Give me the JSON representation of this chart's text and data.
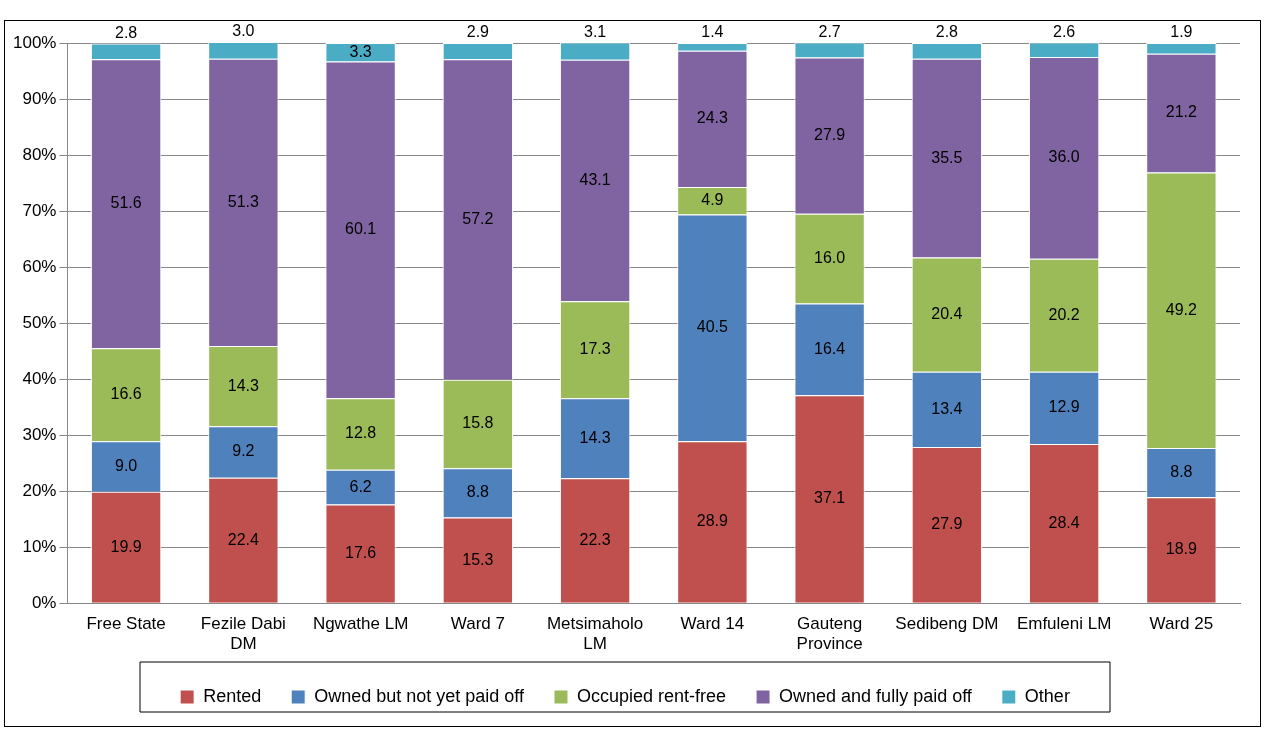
{
  "chart_data": {
    "type": "bar",
    "stacked": true,
    "categories": [
      "Free State",
      "Fezile Dabi DM",
      "Ngwathe LM",
      "Ward 7",
      "Metsimaholo LM",
      "Ward 14",
      "Gauteng Province",
      "Sedibeng DM",
      "Emfuleni LM",
      "Ward 25"
    ],
    "series": [
      {
        "name": "Rented",
        "color": "#c0504d",
        "values": [
          19.9,
          22.4,
          17.6,
          15.3,
          22.3,
          28.9,
          37.1,
          27.9,
          28.4,
          18.9
        ]
      },
      {
        "name": "Owned but not yet paid off",
        "color": "#4f81bd",
        "values": [
          9.0,
          9.2,
          6.2,
          8.8,
          14.3,
          40.5,
          16.4,
          13.4,
          12.9,
          8.8
        ]
      },
      {
        "name": "Occupied rent-free",
        "color": "#9bbb59",
        "values": [
          16.6,
          14.3,
          12.8,
          15.8,
          17.3,
          4.9,
          16.0,
          20.4,
          20.2,
          49.2
        ]
      },
      {
        "name": "Owned and fully paid off",
        "color": "#8064a2",
        "values": [
          51.6,
          51.3,
          60.1,
          57.2,
          43.1,
          24.3,
          27.9,
          35.5,
          36.0,
          21.2
        ]
      },
      {
        "name": "Other",
        "color": "#4bacc6",
        "values": [
          2.8,
          3.0,
          3.3,
          2.9,
          3.1,
          1.4,
          2.7,
          2.8,
          2.6,
          1.9
        ]
      }
    ],
    "value_labels": [
      [
        "19.9",
        "22.4",
        "17.6",
        "15.3",
        "22.3",
        "28.9",
        "37.1",
        "27.9",
        "28.4",
        "18.9"
      ],
      [
        "9.0",
        "9.2",
        "6.2",
        "8.8",
        "14.3",
        "40.5",
        "16.4",
        "13.4",
        "12.9",
        "8.8"
      ],
      [
        "16.6",
        "14.3",
        "12.8",
        "15.8",
        "17.3",
        "4.9",
        "16.0",
        "20.4",
        "20.2",
        "49.2"
      ],
      [
        "51.6",
        "51.3",
        "60.1",
        "57.2",
        "43.1",
        "24.3",
        "27.9",
        "35.5",
        "36.0",
        "21.2"
      ],
      [
        "2.8",
        "3.0",
        "3.3",
        "2.9",
        "3.1",
        "1.4",
        "2.7",
        "2.8",
        "2.6",
        "1.9"
      ]
    ],
    "ylim": [
      0,
      100
    ],
    "yticks": [
      {
        "value": 0,
        "label": "0%"
      },
      {
        "value": 10,
        "label": "10%"
      },
      {
        "value": 20,
        "label": "20%"
      },
      {
        "value": 30,
        "label": "30%"
      },
      {
        "value": 40,
        "label": "40%"
      },
      {
        "value": 50,
        "label": "50%"
      },
      {
        "value": 60,
        "label": "60%"
      },
      {
        "value": 70,
        "label": "70%"
      },
      {
        "value": 80,
        "label": "80%"
      },
      {
        "value": 90,
        "label": "90%"
      },
      {
        "value": 100,
        "label": "100%"
      }
    ],
    "grid": "y",
    "legend": "bottom"
  }
}
